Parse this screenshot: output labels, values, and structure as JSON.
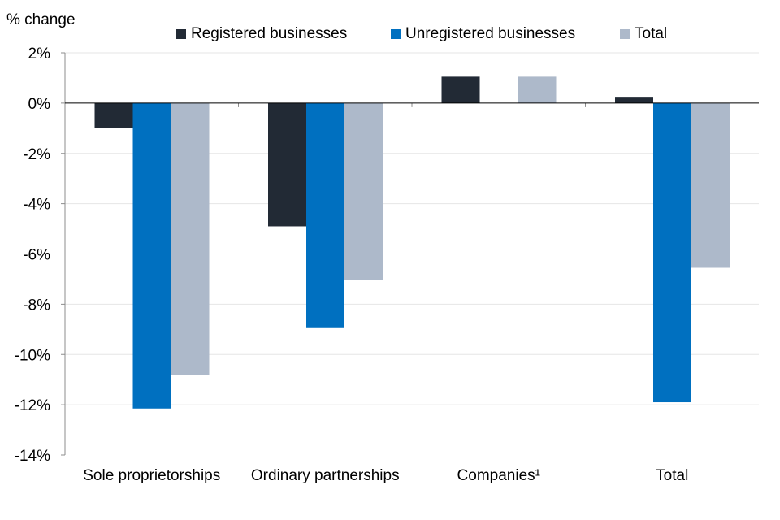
{
  "chart_data": {
    "type": "bar",
    "title": "",
    "ylabel": "% change",
    "xlabel": "",
    "categories": [
      "Sole proprietorships",
      "Ordinary partnerships",
      "Companies¹",
      "Total"
    ],
    "series": [
      {
        "name": "Registered businesses",
        "color": "#222a35",
        "values": [
          -1.0,
          -4.9,
          1.05,
          0.25
        ]
      },
      {
        "name": "Unregistered businesses",
        "color": "#0070c0",
        "values": [
          -12.15,
          -8.95,
          null,
          -11.9
        ]
      },
      {
        "name": "Total",
        "color": "#adb9ca",
        "values": [
          -10.8,
          -7.05,
          1.05,
          -6.55
        ]
      }
    ],
    "ylim": [
      -14,
      2
    ],
    "yticks": [
      2,
      0,
      -2,
      -4,
      -6,
      -8,
      -10,
      -12,
      -14
    ],
    "ytick_labels": [
      "2%",
      "0%",
      "-2%",
      "-4%",
      "-6%",
      "-8%",
      "-10%",
      "-12%",
      "-14%"
    ],
    "grid": true,
    "legend_position": "top"
  }
}
